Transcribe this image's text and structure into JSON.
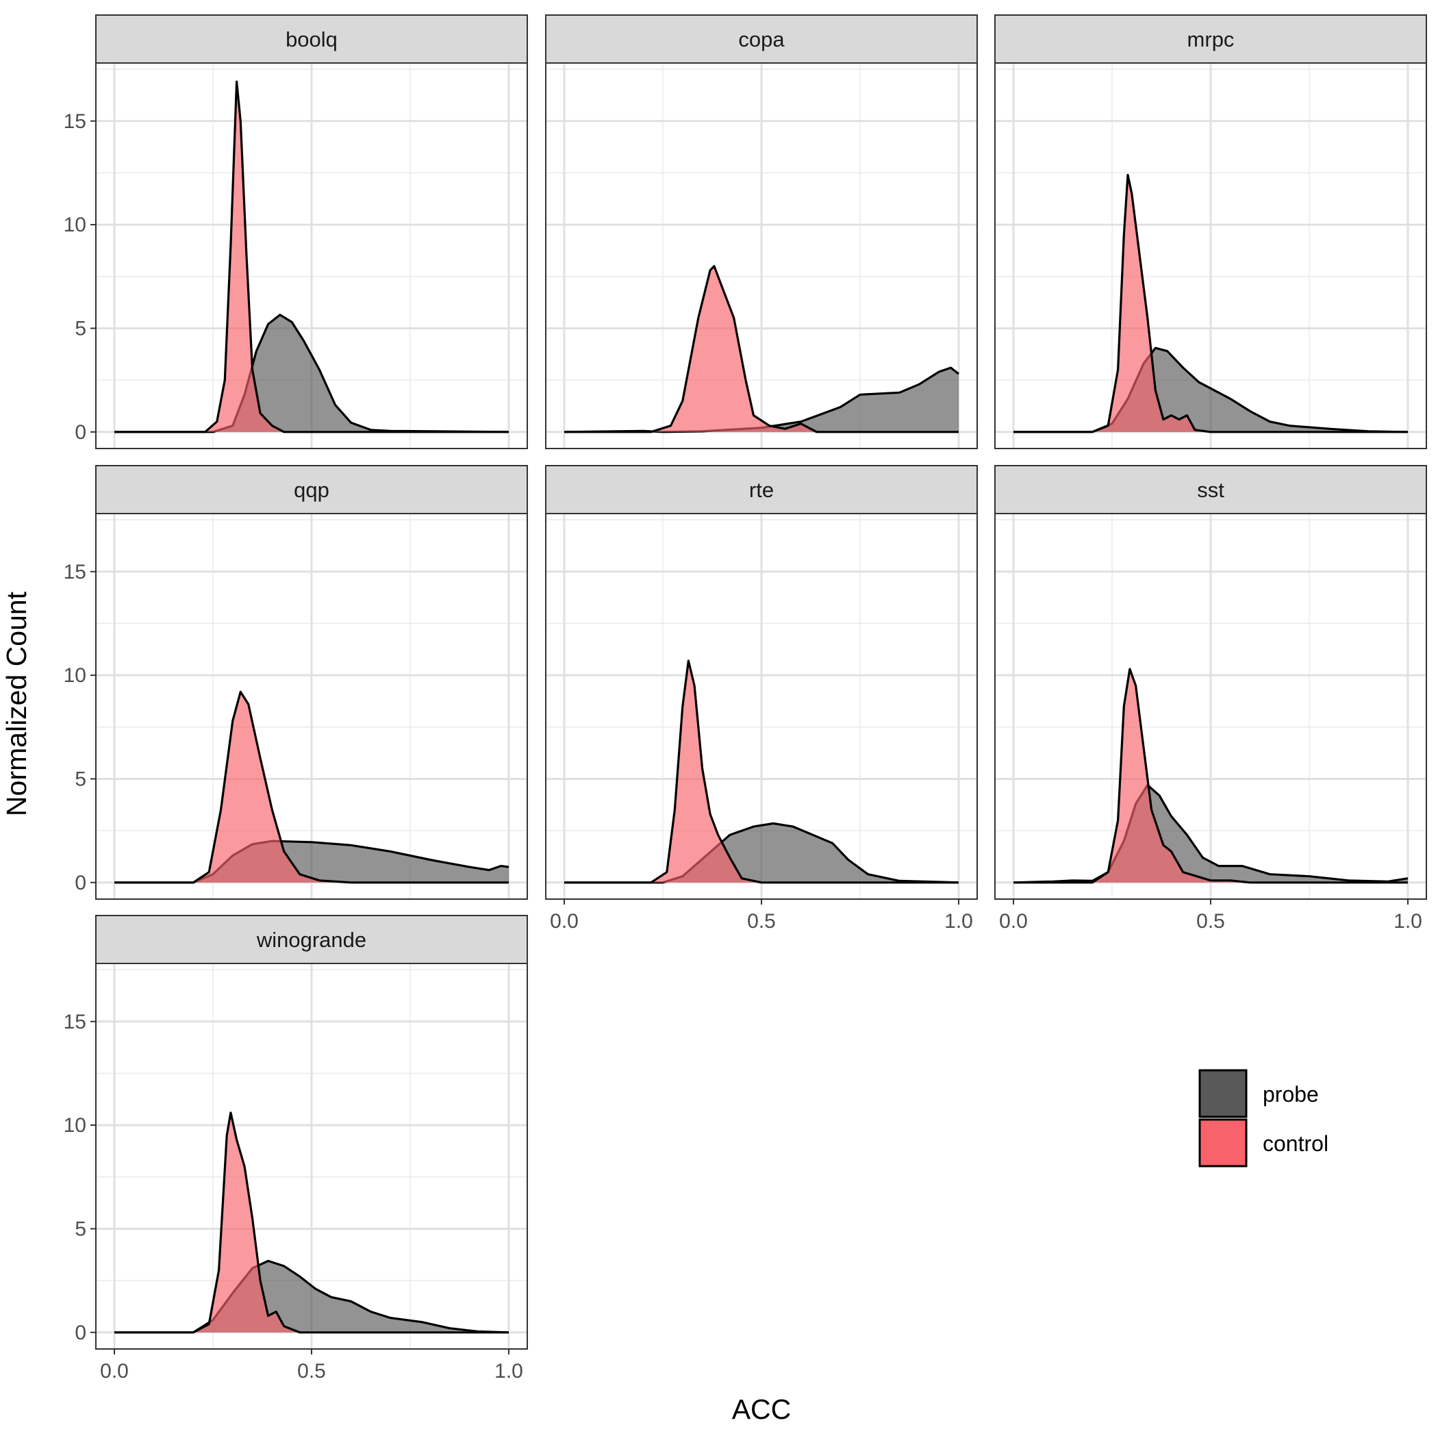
{
  "chart_data": {
    "type": "area",
    "subtype": "faceted density",
    "xlabel": "ACC",
    "ylabel": "Normalized Count",
    "xlim": [
      0,
      1
    ],
    "ylim": [
      0,
      17
    ],
    "x_ticks": [
      "0.0",
      "0.5",
      "1.0"
    ],
    "y_ticks": [
      "0",
      "5",
      "10",
      "15"
    ],
    "grid": true,
    "legend": {
      "position": "bottom-right",
      "entries": [
        {
          "name": "probe",
          "color": "#595959"
        },
        {
          "name": "control",
          "color": "#F8626A"
        }
      ]
    },
    "colors": {
      "probe": "#595959",
      "control": "#F8626A",
      "strip": "#D9D9D9"
    },
    "facets": [
      {
        "name": "boolq",
        "series": [
          {
            "name": "probe",
            "points": [
              [
                0,
                0
              ],
              [
                0.25,
                0
              ],
              [
                0.3,
                0.3
              ],
              [
                0.33,
                1.8
              ],
              [
                0.36,
                3.9
              ],
              [
                0.39,
                5.2
              ],
              [
                0.42,
                5.65
              ],
              [
                0.45,
                5.3
              ],
              [
                0.48,
                4.4
              ],
              [
                0.52,
                3.0
              ],
              [
                0.56,
                1.3
              ],
              [
                0.6,
                0.45
              ],
              [
                0.65,
                0.1
              ],
              [
                0.7,
                0.05
              ],
              [
                1,
                0
              ]
            ]
          },
          {
            "name": "control",
            "points": [
              [
                0,
                0
              ],
              [
                0.23,
                0
              ],
              [
                0.26,
                0.5
              ],
              [
                0.28,
                2.5
              ],
              [
                0.295,
                9.0
              ],
              [
                0.31,
                16.9
              ],
              [
                0.32,
                15.0
              ],
              [
                0.335,
                8.5
              ],
              [
                0.35,
                3.0
              ],
              [
                0.37,
                0.9
              ],
              [
                0.4,
                0.3
              ],
              [
                0.43,
                0
              ],
              [
                1,
                0
              ]
            ]
          }
        ]
      },
      {
        "name": "copa",
        "series": [
          {
            "name": "probe",
            "points": [
              [
                0,
                0
              ],
              [
                0.2,
                0.05
              ],
              [
                0.25,
                0
              ],
              [
                0.35,
                0.03
              ],
              [
                0.5,
                0.2
              ],
              [
                0.6,
                0.5
              ],
              [
                0.7,
                1.2
              ],
              [
                0.75,
                1.8
              ],
              [
                0.85,
                1.9
              ],
              [
                0.9,
                2.3
              ],
              [
                0.95,
                2.9
              ],
              [
                0.98,
                3.1
              ],
              [
                1,
                2.8
              ]
            ]
          },
          {
            "name": "control",
            "points": [
              [
                0,
                0
              ],
              [
                0.22,
                0
              ],
              [
                0.27,
                0.3
              ],
              [
                0.3,
                1.5
              ],
              [
                0.34,
                5.5
              ],
              [
                0.37,
                7.8
              ],
              [
                0.38,
                8.0
              ],
              [
                0.4,
                7.0
              ],
              [
                0.43,
                5.5
              ],
              [
                0.46,
                2.5
              ],
              [
                0.48,
                0.8
              ],
              [
                0.52,
                0.3
              ],
              [
                0.56,
                0.15
              ],
              [
                0.6,
                0.4
              ],
              [
                0.64,
                0
              ],
              [
                1,
                0
              ]
            ]
          }
        ]
      },
      {
        "name": "mrpc",
        "series": [
          {
            "name": "probe",
            "points": [
              [
                0,
                0
              ],
              [
                0.2,
                0
              ],
              [
                0.25,
                0.4
              ],
              [
                0.29,
                1.6
              ],
              [
                0.33,
                3.3
              ],
              [
                0.36,
                4.05
              ],
              [
                0.39,
                3.9
              ],
              [
                0.43,
                3.1
              ],
              [
                0.47,
                2.4
              ],
              [
                0.5,
                2.1
              ],
              [
                0.55,
                1.6
              ],
              [
                0.6,
                1.0
              ],
              [
                0.65,
                0.5
              ],
              [
                0.7,
                0.3
              ],
              [
                0.8,
                0.15
              ],
              [
                0.9,
                0.03
              ],
              [
                1,
                0
              ]
            ]
          },
          {
            "name": "control",
            "points": [
              [
                0,
                0
              ],
              [
                0.2,
                0
              ],
              [
                0.24,
                0.3
              ],
              [
                0.265,
                3.0
              ],
              [
                0.28,
                9.5
              ],
              [
                0.29,
                12.4
              ],
              [
                0.3,
                11.5
              ],
              [
                0.32,
                8.5
              ],
              [
                0.34,
                5.5
              ],
              [
                0.36,
                2.0
              ],
              [
                0.38,
                0.6
              ],
              [
                0.4,
                0.8
              ],
              [
                0.42,
                0.6
              ],
              [
                0.44,
                0.8
              ],
              [
                0.46,
                0.1
              ],
              [
                0.5,
                0
              ],
              [
                1,
                0
              ]
            ]
          }
        ]
      },
      {
        "name": "qqp",
        "series": [
          {
            "name": "probe",
            "points": [
              [
                0,
                0
              ],
              [
                0.2,
                0
              ],
              [
                0.25,
                0.4
              ],
              [
                0.3,
                1.3
              ],
              [
                0.35,
                1.85
              ],
              [
                0.4,
                2.0
              ],
              [
                0.5,
                1.95
              ],
              [
                0.6,
                1.8
              ],
              [
                0.7,
                1.5
              ],
              [
                0.8,
                1.1
              ],
              [
                0.9,
                0.75
              ],
              [
                0.95,
                0.6
              ],
              [
                0.98,
                0.8
              ],
              [
                1,
                0.75
              ]
            ]
          },
          {
            "name": "control",
            "points": [
              [
                0,
                0
              ],
              [
                0.2,
                0
              ],
              [
                0.24,
                0.5
              ],
              [
                0.27,
                3.5
              ],
              [
                0.3,
                7.8
              ],
              [
                0.32,
                9.2
              ],
              [
                0.34,
                8.6
              ],
              [
                0.37,
                6.0
              ],
              [
                0.4,
                3.5
              ],
              [
                0.43,
                1.5
              ],
              [
                0.47,
                0.4
              ],
              [
                0.52,
                0.1
              ],
              [
                0.6,
                0
              ],
              [
                1,
                0
              ]
            ]
          }
        ]
      },
      {
        "name": "rte",
        "series": [
          {
            "name": "probe",
            "points": [
              [
                0,
                0
              ],
              [
                0.25,
                0
              ],
              [
                0.3,
                0.3
              ],
              [
                0.36,
                1.3
              ],
              [
                0.42,
                2.3
              ],
              [
                0.48,
                2.7
              ],
              [
                0.53,
                2.85
              ],
              [
                0.58,
                2.7
              ],
              [
                0.63,
                2.3
              ],
              [
                0.68,
                1.9
              ],
              [
                0.72,
                1.1
              ],
              [
                0.77,
                0.4
              ],
              [
                0.85,
                0.08
              ],
              [
                1,
                0
              ]
            ]
          },
          {
            "name": "control",
            "points": [
              [
                0,
                0
              ],
              [
                0.22,
                0
              ],
              [
                0.26,
                0.5
              ],
              [
                0.28,
                3.5
              ],
              [
                0.3,
                8.5
              ],
              [
                0.315,
                10.7
              ],
              [
                0.33,
                9.5
              ],
              [
                0.35,
                5.5
              ],
              [
                0.37,
                3.3
              ],
              [
                0.39,
                2.3
              ],
              [
                0.42,
                1.2
              ],
              [
                0.45,
                0.2
              ],
              [
                0.5,
                0
              ],
              [
                1,
                0
              ]
            ]
          }
        ]
      },
      {
        "name": "sst",
        "series": [
          {
            "name": "probe",
            "points": [
              [
                0,
                0
              ],
              [
                0.1,
                0.05
              ],
              [
                0.15,
                0.1
              ],
              [
                0.2,
                0.08
              ],
              [
                0.24,
                0.5
              ],
              [
                0.28,
                2.0
              ],
              [
                0.31,
                3.8
              ],
              [
                0.34,
                4.7
              ],
              [
                0.37,
                4.2
              ],
              [
                0.4,
                3.2
              ],
              [
                0.44,
                2.3
              ],
              [
                0.48,
                1.2
              ],
              [
                0.52,
                0.8
              ],
              [
                0.58,
                0.8
              ],
              [
                0.65,
                0.4
              ],
              [
                0.75,
                0.3
              ],
              [
                0.85,
                0.1
              ],
              [
                0.95,
                0.05
              ],
              [
                1,
                0.2
              ]
            ]
          },
          {
            "name": "control",
            "points": [
              [
                0,
                0
              ],
              [
                0.2,
                0
              ],
              [
                0.24,
                0.5
              ],
              [
                0.265,
                3.0
              ],
              [
                0.28,
                8.5
              ],
              [
                0.295,
                10.3
              ],
              [
                0.31,
                9.5
              ],
              [
                0.33,
                6.5
              ],
              [
                0.35,
                3.5
              ],
              [
                0.38,
                1.8
              ],
              [
                0.4,
                1.5
              ],
              [
                0.43,
                0.5
              ],
              [
                0.5,
                0.1
              ],
              [
                0.55,
                0.1
              ],
              [
                0.6,
                0
              ],
              [
                1,
                0
              ]
            ]
          }
        ]
      },
      {
        "name": "winogrande",
        "series": [
          {
            "name": "probe",
            "points": [
              [
                0,
                0
              ],
              [
                0.2,
                0
              ],
              [
                0.25,
                0.6
              ],
              [
                0.3,
                1.9
              ],
              [
                0.35,
                3.1
              ],
              [
                0.39,
                3.45
              ],
              [
                0.43,
                3.2
              ],
              [
                0.47,
                2.7
              ],
              [
                0.51,
                2.1
              ],
              [
                0.55,
                1.7
              ],
              [
                0.6,
                1.5
              ],
              [
                0.65,
                1.0
              ],
              [
                0.7,
                0.7
              ],
              [
                0.78,
                0.5
              ],
              [
                0.85,
                0.2
              ],
              [
                0.92,
                0.05
              ],
              [
                1,
                0
              ]
            ]
          },
          {
            "name": "control",
            "points": [
              [
                0,
                0
              ],
              [
                0.2,
                0
              ],
              [
                0.24,
                0.4
              ],
              [
                0.265,
                3.0
              ],
              [
                0.285,
                9.5
              ],
              [
                0.295,
                10.6
              ],
              [
                0.31,
                9.3
              ],
              [
                0.33,
                8.0
              ],
              [
                0.35,
                5.5
              ],
              [
                0.37,
                2.5
              ],
              [
                0.39,
                0.8
              ],
              [
                0.41,
                1.0
              ],
              [
                0.43,
                0.3
              ],
              [
                0.47,
                0
              ],
              [
                1,
                0
              ]
            ]
          }
        ]
      }
    ]
  }
}
